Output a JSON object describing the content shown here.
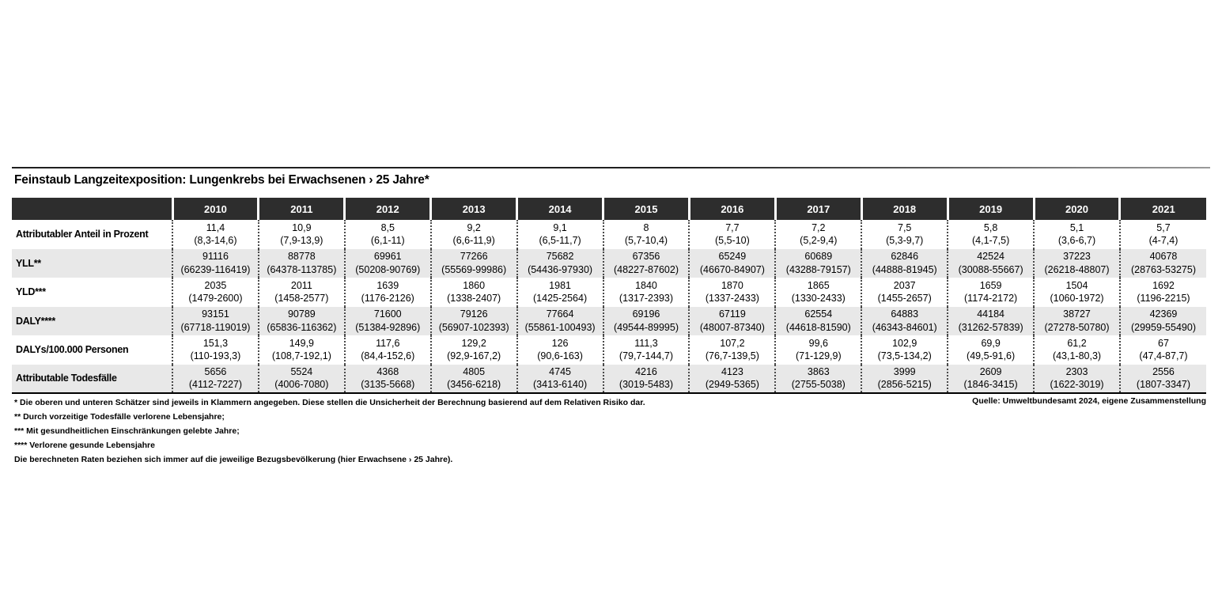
{
  "title": "Feinstaub Langzeitexposition: Lungenkrebs bei Erwachsenen › 25 Jahre*",
  "source": "Quelle: Umweltbundesamt 2024, eigene Zusammenstellung",
  "footnotes": [
    "* Die oberen und unteren Schätzer sind jeweils in Klammern angegeben. Diese stellen die Unsicherheit der Berechnung basierend auf dem Relativen Risiko dar.",
    "** Durch vorzeitige Todesfälle verlorene Lebensjahre;",
    "*** Mit gesundheitlichen Einschränkungen gelebte Jahre;",
    "**** Verlorene gesunde Lebensjahre",
    "Die berechneten Raten beziehen sich immer auf die jeweilige Bezugsbevölkerung (hier Erwachsene › 25 Jahre)."
  ],
  "colors": {
    "header_bg": "#2d2d2d",
    "header_text": "#ffffff",
    "row_alt_bg": "#e8e8e8"
  },
  "chart_data": {
    "type": "table",
    "title": "Feinstaub Langzeitexposition: Lungenkrebs bei Erwachsenen › 25 Jahre*",
    "columns": [
      "2010",
      "2011",
      "2012",
      "2013",
      "2014",
      "2015",
      "2016",
      "2017",
      "2018",
      "2019",
      "2020",
      "2021"
    ],
    "rows": [
      {
        "label": "Attributabler Anteil in Prozent",
        "cells": [
          {
            "value": "11,4",
            "ci": "(8,3-14,6)"
          },
          {
            "value": "10,9",
            "ci": "(7,9-13,9)"
          },
          {
            "value": "8,5",
            "ci": "(6,1-11)"
          },
          {
            "value": "9,2",
            "ci": "(6,6-11,9)"
          },
          {
            "value": "9,1",
            "ci": "(6,5-11,7)"
          },
          {
            "value": "8",
            "ci": "(5,7-10,4)"
          },
          {
            "value": "7,7",
            "ci": "(5,5-10)"
          },
          {
            "value": "7,2",
            "ci": "(5,2-9,4)"
          },
          {
            "value": "7,5",
            "ci": "(5,3-9,7)"
          },
          {
            "value": "5,8",
            "ci": "(4,1-7,5)"
          },
          {
            "value": "5,1",
            "ci": "(3,6-6,7)"
          },
          {
            "value": "5,7",
            "ci": "(4-7,4)"
          }
        ]
      },
      {
        "label": "YLL**",
        "cells": [
          {
            "value": "91116",
            "ci": "(66239-116419)"
          },
          {
            "value": "88778",
            "ci": "(64378-113785)"
          },
          {
            "value": "69961",
            "ci": "(50208-90769)"
          },
          {
            "value": "77266",
            "ci": "(55569-99986)"
          },
          {
            "value": "75682",
            "ci": "(54436-97930)"
          },
          {
            "value": "67356",
            "ci": "(48227-87602)"
          },
          {
            "value": "65249",
            "ci": "(46670-84907)"
          },
          {
            "value": "60689",
            "ci": "(43288-79157)"
          },
          {
            "value": "62846",
            "ci": "(44888-81945)"
          },
          {
            "value": "42524",
            "ci": "(30088-55667)"
          },
          {
            "value": "37223",
            "ci": "(26218-48807)"
          },
          {
            "value": "40678",
            "ci": "(28763-53275)"
          }
        ]
      },
      {
        "label": "YLD***",
        "cells": [
          {
            "value": "2035",
            "ci": "(1479-2600)"
          },
          {
            "value": "2011",
            "ci": "(1458-2577)"
          },
          {
            "value": "1639",
            "ci": "(1176-2126)"
          },
          {
            "value": "1860",
            "ci": "(1338-2407)"
          },
          {
            "value": "1981",
            "ci": "(1425-2564)"
          },
          {
            "value": "1840",
            "ci": "(1317-2393)"
          },
          {
            "value": "1870",
            "ci": "(1337-2433)"
          },
          {
            "value": "1865",
            "ci": "(1330-2433)"
          },
          {
            "value": "2037",
            "ci": "(1455-2657)"
          },
          {
            "value": "1659",
            "ci": "(1174-2172)"
          },
          {
            "value": "1504",
            "ci": "(1060-1972)"
          },
          {
            "value": "1692",
            "ci": "(1196-2215)"
          }
        ]
      },
      {
        "label": "DALY****",
        "cells": [
          {
            "value": "93151",
            "ci": "(67718-119019)"
          },
          {
            "value": "90789",
            "ci": "(65836-116362)"
          },
          {
            "value": "71600",
            "ci": "(51384-92896)"
          },
          {
            "value": "79126",
            "ci": "(56907-102393)"
          },
          {
            "value": "77664",
            "ci": "(55861-100493)"
          },
          {
            "value": "69196",
            "ci": "(49544-89995)"
          },
          {
            "value": "67119",
            "ci": "(48007-87340)"
          },
          {
            "value": "62554",
            "ci": "(44618-81590)"
          },
          {
            "value": "64883",
            "ci": "(46343-84601)"
          },
          {
            "value": "44184",
            "ci": "(31262-57839)"
          },
          {
            "value": "38727",
            "ci": "(27278-50780)"
          },
          {
            "value": "42369",
            "ci": "(29959-55490)"
          }
        ]
      },
      {
        "label": "DALYs/100.000 Personen",
        "cells": [
          {
            "value": "151,3",
            "ci": "(110-193,3)"
          },
          {
            "value": "149,9",
            "ci": "(108,7-192,1)"
          },
          {
            "value": "117,6",
            "ci": "(84,4-152,6)"
          },
          {
            "value": "129,2",
            "ci": "(92,9-167,2)"
          },
          {
            "value": "126",
            "ci": "(90,6-163)"
          },
          {
            "value": "111,3",
            "ci": "(79,7-144,7)"
          },
          {
            "value": "107,2",
            "ci": "(76,7-139,5)"
          },
          {
            "value": "99,6",
            "ci": "(71-129,9)"
          },
          {
            "value": "102,9",
            "ci": "(73,5-134,2)"
          },
          {
            "value": "69,9",
            "ci": "(49,5-91,6)"
          },
          {
            "value": "61,2",
            "ci": "(43,1-80,3)"
          },
          {
            "value": "67",
            "ci": "(47,4-87,7)"
          }
        ]
      },
      {
        "label": "Attributable Todesfälle",
        "cells": [
          {
            "value": "5656",
            "ci": "(4112-7227)"
          },
          {
            "value": "5524",
            "ci": "(4006-7080)"
          },
          {
            "value": "4368",
            "ci": "(3135-5668)"
          },
          {
            "value": "4805",
            "ci": "(3456-6218)"
          },
          {
            "value": "4745",
            "ci": "(3413-6140)"
          },
          {
            "value": "4216",
            "ci": "(3019-5483)"
          },
          {
            "value": "4123",
            "ci": "(2949-5365)"
          },
          {
            "value": "3863",
            "ci": "(2755-5038)"
          },
          {
            "value": "3999",
            "ci": "(2856-5215)"
          },
          {
            "value": "2609",
            "ci": "(1846-3415)"
          },
          {
            "value": "2303",
            "ci": "(1622-3019)"
          },
          {
            "value": "2556",
            "ci": "(1807-3347)"
          }
        ]
      }
    ]
  }
}
